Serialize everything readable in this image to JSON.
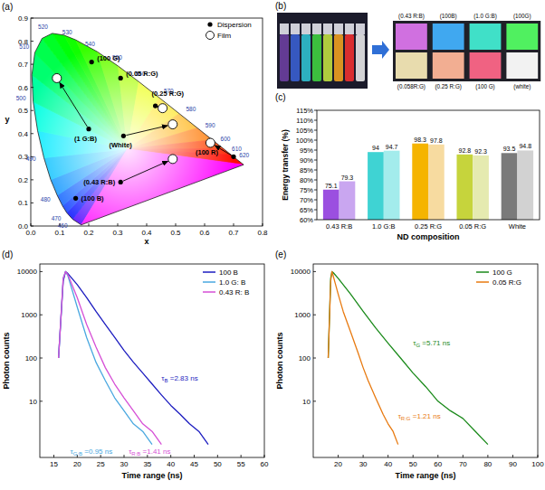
{
  "chart_data": [
    {
      "type": "scatter",
      "panel_label": "(a)",
      "xlabel": "x",
      "ylabel": "y",
      "xlim": [
        0,
        0.8
      ],
      "ylim": [
        0,
        0.9
      ],
      "xticks": [
        {
          "value": 0,
          "label": "0.0"
        },
        0.1,
        0.2,
        0.3,
        0.4,
        0.5,
        0.6,
        0.7,
        0.8
      ],
      "yticks": [
        {
          "value": 0,
          "label": "0.0"
        },
        0.1,
        0.2,
        0.3,
        0.4,
        0.5,
        0.6,
        0.7,
        0.8,
        0.9
      ],
      "legend": "top-right",
      "locus": {
        "wavelength": [
          380,
          460,
          470,
          475,
          480,
          485,
          490,
          495,
          500,
          505,
          510,
          515,
          520,
          525,
          530,
          540,
          550,
          560,
          570,
          580,
          590,
          600,
          610,
          620,
          700
        ],
        "x": [
          0.1741,
          0.144,
          0.1241,
          0.1096,
          0.0913,
          0.0687,
          0.0454,
          0.0235,
          0.0082,
          0.0039,
          0.0139,
          0.0389,
          0.0743,
          0.1142,
          0.1547,
          0.2296,
          0.3016,
          0.3731,
          0.4441,
          0.5125,
          0.5752,
          0.627,
          0.6658,
          0.6915,
          0.7347
        ],
        "y": [
          0.005,
          0.0297,
          0.0578,
          0.0868,
          0.1327,
          0.2007,
          0.295,
          0.4127,
          0.5384,
          0.6548,
          0.7502,
          0.812,
          0.8338,
          0.8262,
          0.8059,
          0.7543,
          0.6923,
          0.6245,
          0.5547,
          0.4866,
          0.4242,
          0.3725,
          0.334,
          0.3083,
          0.2653
        ]
      },
      "locus_labels": [
        460,
        470,
        480,
        490,
        500,
        510,
        520,
        530,
        540,
        550,
        560,
        570,
        580,
        590,
        600,
        610,
        620
      ],
      "series": [
        {
          "name": "Dispersion",
          "color": "#000000",
          "marker": "dot",
          "labels": [
            "(100 G)",
            "(0.05 R:G)",
            "(0.25 R:G)",
            "(1 G:B)",
            "(White)",
            "(100 R)",
            "(0.43 R:B)",
            "(100 B)"
          ],
          "x": [
            0.21,
            0.31,
            0.43,
            0.2,
            0.32,
            0.7,
            0.31,
            0.155
          ],
          "y": [
            0.71,
            0.64,
            0.52,
            0.42,
            0.39,
            0.3,
            0.19,
            0.12
          ]
        },
        {
          "name": "Film",
          "color": "#ffffff",
          "marker": "circle",
          "x": [
            null,
            null,
            0.455,
            0.09,
            0.49,
            0.62,
            0.49,
            null
          ],
          "y": [
            null,
            null,
            0.51,
            0.64,
            0.44,
            0.36,
            0.29,
            null
          ]
        }
      ]
    },
    {
      "type": "bar",
      "panel_label": "(c)",
      "xlabel": "ND composition",
      "ylabel": "Energy transfer (%)",
      "categories": [
        "0.43 R:B",
        "1.0 G:B",
        "0.25 R:G",
        "0.05 R:G",
        "White"
      ],
      "series": [
        {
          "values": [
            75.1,
            94,
            98.3,
            92.8,
            93.5
          ],
          "colors": [
            "#9b4fe0",
            "#3fd3d3",
            "#f5b400",
            "#c6d43c",
            "#7a7a7a"
          ]
        },
        {
          "values": [
            79.3,
            94.7,
            97.8,
            92.3,
            94.8
          ],
          "colors": [
            "#c9a6f0",
            "#a3ecec",
            "#f7dba0",
            "#e5eab0",
            "#d2d2d2"
          ]
        }
      ],
      "ylim": [
        60,
        115
      ],
      "yticks": [
        {
          "value": 60,
          "label": "60%"
        },
        {
          "value": 65,
          "label": "65%"
        },
        {
          "value": 70,
          "label": "70%"
        },
        {
          "value": 75,
          "label": "75%"
        },
        {
          "value": 80,
          "label": "80%"
        },
        {
          "value": 85,
          "label": "85%"
        },
        {
          "value": 90,
          "label": "90%"
        },
        {
          "value": 95,
          "label": "95%"
        },
        {
          "value": 100,
          "label": "100%"
        },
        {
          "value": 105,
          "label": "105%"
        },
        {
          "value": 110,
          "label": "110%"
        },
        {
          "value": 115,
          "label": "115%"
        }
      ],
      "data_labels": true
    },
    {
      "type": "line",
      "panel_label": "(d)",
      "xlabel": "Time range (ns)",
      "ylabel": "Photon counts",
      "log": "y",
      "xlim": [
        12,
        60
      ],
      "ylim": [
        0.5,
        15000
      ],
      "xticks": [
        15,
        20,
        25,
        30,
        35,
        40,
        45,
        50,
        55,
        60
      ],
      "yticks": [
        10,
        100,
        1000,
        10000
      ],
      "legend": "top-right",
      "series": [
        {
          "name": "100 B",
          "color": "#1c1cc0",
          "x": [
            16,
            17,
            17.5,
            18,
            20,
            22,
            24,
            26,
            28,
            30,
            32,
            34,
            36,
            38,
            40,
            42,
            44,
            46,
            48
          ],
          "values": [
            100,
            6000,
            10000,
            9000,
            5000,
            2500,
            1200,
            600,
            300,
            150,
            80,
            45,
            25,
            14,
            8,
            5,
            3,
            2,
            1
          ]
        },
        {
          "name": "1.0 G: B",
          "color": "#4aa8e0",
          "x": [
            16,
            17,
            17.5,
            18,
            20,
            22,
            24,
            26,
            28,
            30,
            32,
            34,
            36
          ],
          "values": [
            100,
            7000,
            10000,
            8000,
            1500,
            300,
            80,
            30,
            12,
            6,
            3,
            2,
            1
          ]
        },
        {
          "name": "0.43 R: B",
          "color": "#d64fd6",
          "x": [
            16,
            17,
            17.5,
            18,
            20,
            22,
            24,
            26,
            28,
            30,
            32,
            34,
            36,
            38
          ],
          "values": [
            100,
            7000,
            10000,
            8500,
            2500,
            600,
            180,
            60,
            25,
            12,
            6,
            3,
            2,
            1
          ]
        }
      ],
      "annotations": [
        {
          "symbol": "τ",
          "subscript": "B",
          "text": " =2.83 ns",
          "color": "#1c1cc0"
        },
        {
          "symbol": "τ",
          "subscript": "G:B",
          "text": " =0.95 ns",
          "color": "#4aa8e0"
        },
        {
          "symbol": "τ",
          "subscript": "R:B",
          "text": " =1.41 ns",
          "color": "#d64fd6"
        }
      ]
    },
    {
      "type": "line",
      "panel_label": "(e)",
      "xlabel": "Time range (ns)",
      "ylabel": "Photon counts",
      "log": "y",
      "xlim": [
        10,
        100
      ],
      "ylim": [
        0.5,
        15000
      ],
      "xticks": [
        20,
        30,
        40,
        50,
        60,
        70,
        80,
        90,
        100
      ],
      "yticks": [
        10,
        100,
        1000,
        10000
      ],
      "legend": "top-right",
      "series": [
        {
          "name": "100 G",
          "color": "#1a8a1a",
          "x": [
            16,
            17,
            17.5,
            18,
            20,
            25,
            30,
            35,
            40,
            45,
            50,
            55,
            60,
            65,
            70,
            75,
            80
          ],
          "values": [
            100,
            7000,
            10000,
            9500,
            7000,
            3000,
            1200,
            500,
            220,
            100,
            45,
            22,
            10,
            6,
            4,
            2,
            1
          ]
        },
        {
          "name": "0.05 R:G",
          "color": "#e87a10",
          "x": [
            16,
            17,
            17.5,
            18,
            20,
            22,
            25,
            28,
            30,
            32,
            35,
            38,
            40,
            42,
            44
          ],
          "values": [
            100,
            6000,
            10000,
            8000,
            3000,
            1200,
            400,
            130,
            60,
            30,
            12,
            5,
            3,
            2,
            1
          ]
        }
      ],
      "annotations": [
        {
          "symbol": "τ",
          "subscript": "G",
          "text": " =5.71 ns",
          "color": "#1a8a1a"
        },
        {
          "symbol": "τ",
          "subscript": "R:G",
          "text": " =1.21 ns",
          "color": "#e87a10"
        }
      ]
    }
  ],
  "panel_b": {
    "panel_label": "(b)",
    "top_labels": [
      "(0.43 R:B)",
      "(100B)",
      "(1.0 G:B)",
      "(100G)"
    ],
    "bottom_labels": [
      "(0.058R:G)",
      "(0.25 R:G)",
      "(100 G)",
      "(white)"
    ]
  }
}
